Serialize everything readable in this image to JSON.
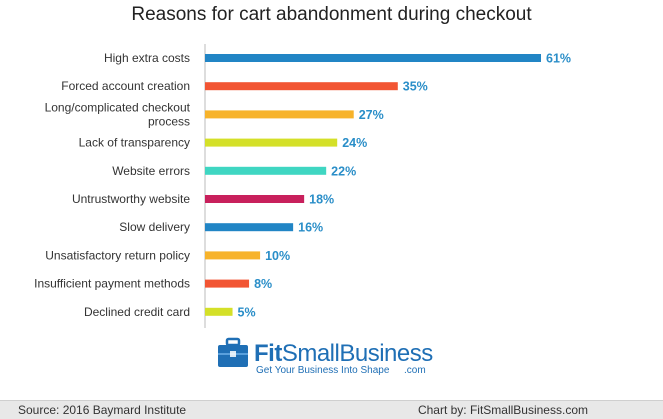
{
  "chart_data": {
    "type": "bar",
    "orientation": "horizontal",
    "title": "Reasons for cart abandonment during checkout",
    "categories": [
      [
        "High extra costs"
      ],
      [
        "Forced account creation"
      ],
      [
        "Long/complicated checkout",
        "process"
      ],
      [
        "Lack of transparency"
      ],
      [
        "Website errors"
      ],
      [
        "Untrustworthy website"
      ],
      [
        "Slow delivery"
      ],
      [
        "Unsatisfactory return policy"
      ],
      [
        "Insufficient payment methods"
      ],
      [
        "Declined credit card"
      ]
    ],
    "values": [
      61,
      35,
      27,
      24,
      22,
      18,
      16,
      10,
      8,
      5
    ],
    "value_labels": [
      "61%",
      "35%",
      "27%",
      "24%",
      "22%",
      "18%",
      "16%",
      "10%",
      "8%",
      "5%"
    ],
    "bar_colors": [
      "#2185c5",
      "#f25533",
      "#f7b32b",
      "#d4e028",
      "#3fd6c2",
      "#c8205c",
      "#2185c5",
      "#f7b32b",
      "#f25533",
      "#d4e028"
    ],
    "label_color": "#2a8ec8",
    "xlim": [
      0,
      61
    ],
    "grid": false,
    "legend": "none"
  },
  "brand": {
    "name_fit": "Fit",
    "name_small": "Small",
    "name_business": "Business",
    "tagline": "Get Your Business Into Shape",
    "domain_suffix": ".com"
  },
  "footer": {
    "source": "Source: 2016 Baymard Institute",
    "credit": "Chart by: FitSmallBusiness.com"
  }
}
